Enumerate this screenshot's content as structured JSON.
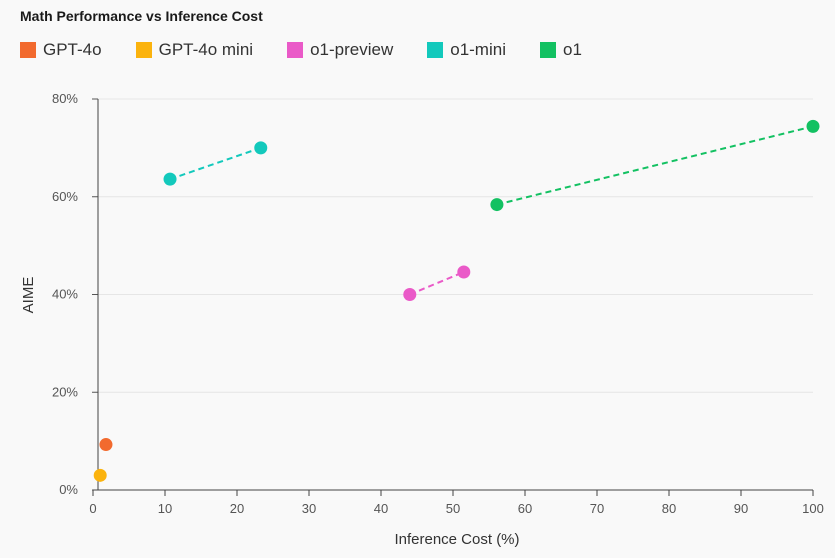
{
  "title": "Math Performance vs Inference Cost",
  "chart_data": {
    "type": "scatter",
    "title": "Math Performance vs Inference Cost",
    "xlabel": "Inference Cost (%)",
    "ylabel": "AIME",
    "xlim": [
      0,
      100
    ],
    "ylim": [
      0,
      80
    ],
    "x_ticks": [
      "0",
      "10",
      "20",
      "30",
      "40",
      "50",
      "60",
      "70",
      "80",
      "90",
      "100"
    ],
    "y_ticks": [
      "0%",
      "20%",
      "40%",
      "60%",
      "80%"
    ],
    "grid": "horizontal",
    "legend_position": "top-left",
    "series": [
      {
        "name": "GPT-4o",
        "color": "#f26a2e",
        "points": [
          [
            1.8,
            9.3
          ]
        ],
        "connect": false
      },
      {
        "name": "GPT-4o mini",
        "color": "#fbb30e",
        "points": [
          [
            1.0,
            3.0
          ]
        ],
        "connect": false
      },
      {
        "name": "o1-preview",
        "color": "#ea5ac8",
        "points": [
          [
            44.0,
            40.0
          ],
          [
            51.5,
            44.6
          ]
        ],
        "connect": true
      },
      {
        "name": "o1-mini",
        "color": "#13c9bc",
        "points": [
          [
            10.7,
            63.6
          ],
          [
            23.3,
            70.0
          ]
        ],
        "connect": true
      },
      {
        "name": "o1",
        "color": "#13c162",
        "points": [
          [
            56.1,
            58.4
          ],
          [
            100.0,
            74.4
          ]
        ],
        "connect": true
      }
    ]
  }
}
